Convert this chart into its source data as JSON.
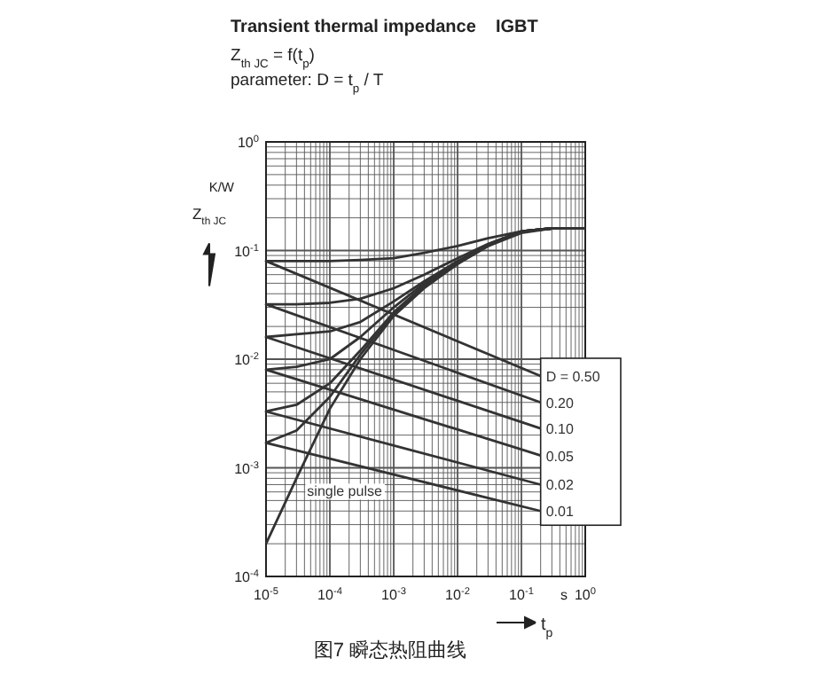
{
  "chart_data": {
    "type": "line",
    "title": "Transient thermal impedance    IGBT",
    "subtitle": "Z$_{th JC}$ = f(t$_{p}$)",
    "xlabel": "t$_{p}$",
    "ylabel": "Z$_{th JC}$",
    "annotations": [
      "parameter: D = t$_{p}$ / T",
      "K/W",
      "s",
      "图7 瞬态热阻曲线"
    ],
    "log": "xy",
    "grid": true,
    "legend": false,
    "marker": "none",
    "line_style": "solid",
    "xlim": [
      1e-05,
      1
    ],
    "ylim": [
      0.0001,
      1
    ],
    "xticks": [
      {
        "value": 1e-05,
        "label": "10$^{-5}$"
      },
      {
        "value": 0.0001,
        "label": "10$^{-4}$"
      },
      {
        "value": 0.001,
        "label": "10$^{-3}$"
      },
      {
        "value": 0.01,
        "label": "10$^{-2}$"
      },
      {
        "value": 0.1,
        "label": "10$^{-1}$"
      },
      {
        "value": 1,
        "label": "10$^{0}$"
      }
    ],
    "yticks": [
      {
        "value": 0.0001,
        "label": "10$^{-4}$"
      },
      {
        "value": 0.001,
        "label": "10$^{-3}$"
      },
      {
        "value": 0.01,
        "label": "10$^{-2}$"
      },
      {
        "value": 0.1,
        "label": "10$^{-1}$"
      },
      {
        "value": 1,
        "label": "10$^{0}$"
      }
    ],
    "x": [
      1e-05,
      3e-05,
      0.0001,
      0.0003,
      0.001,
      0.003,
      0.01,
      0.03,
      0.1,
      0.3,
      1
    ],
    "series": [
      {
        "name": "D = 0.50",
        "color": "#333333",
        "x": [
          0.2,
          1e-05,
          3e-05,
          0.0001,
          0.0003,
          0.001,
          0.003,
          0.01,
          0.03,
          0.1,
          0.3,
          1
        ],
        "values": [
          0.007,
          0.08,
          0.08,
          0.08,
          0.082,
          0.085,
          0.095,
          0.11,
          0.13,
          0.15,
          0.16,
          0.16
        ]
      },
      {
        "name": "0.20",
        "color": "#333333",
        "x": [
          0.2,
          1e-05,
          3e-05,
          0.0001,
          0.0003,
          0.001,
          0.003,
          0.01,
          0.03,
          0.1,
          0.3,
          1
        ],
        "values": [
          0.004,
          0.032,
          0.032,
          0.033,
          0.036,
          0.045,
          0.06,
          0.085,
          0.115,
          0.15,
          0.16,
          0.16
        ]
      },
      {
        "name": "0.10",
        "color": "#333333",
        "x": [
          0.2,
          1e-05,
          3e-05,
          0.0001,
          0.0003,
          0.001,
          0.003,
          0.01,
          0.03,
          0.1,
          0.3,
          1
        ],
        "values": [
          0.0023,
          0.016,
          0.017,
          0.018,
          0.022,
          0.034,
          0.052,
          0.08,
          0.113,
          0.15,
          0.16,
          0.16
        ]
      },
      {
        "name": "0.05",
        "color": "#333333",
        "x": [
          0.2,
          1e-05,
          3e-05,
          0.0001,
          0.0003,
          0.001,
          0.003,
          0.01,
          0.03,
          0.1,
          0.3,
          1
        ],
        "values": [
          0.0013,
          0.008,
          0.0085,
          0.01,
          0.016,
          0.03,
          0.05,
          0.078,
          0.112,
          0.15,
          0.16,
          0.16
        ]
      },
      {
        "name": "0.02",
        "color": "#333333",
        "x": [
          0.2,
          1e-05,
          3e-05,
          0.0001,
          0.0003,
          0.001,
          0.003,
          0.01,
          0.03,
          0.1,
          0.3,
          1
        ],
        "values": [
          0.0007,
          0.0033,
          0.0038,
          0.006,
          0.012,
          0.027,
          0.048,
          0.077,
          0.111,
          0.15,
          0.16,
          0.16
        ]
      },
      {
        "name": "0.01",
        "color": "#333333",
        "x": [
          0.2,
          1e-05,
          3e-05,
          0.0001,
          0.0003,
          0.001,
          0.003,
          0.01,
          0.03,
          0.1,
          0.3,
          1
        ],
        "values": [
          0.0004,
          0.0017,
          0.0022,
          0.0045,
          0.011,
          0.026,
          0.047,
          0.076,
          0.11,
          0.15,
          0.16,
          0.16
        ]
      },
      {
        "name": "single pulse",
        "color": "#333333",
        "values": [
          0.0002,
          0.0008,
          0.0035,
          0.01,
          0.025,
          0.045,
          0.075,
          0.11,
          0.145,
          0.16,
          0.16
        ]
      }
    ]
  }
}
